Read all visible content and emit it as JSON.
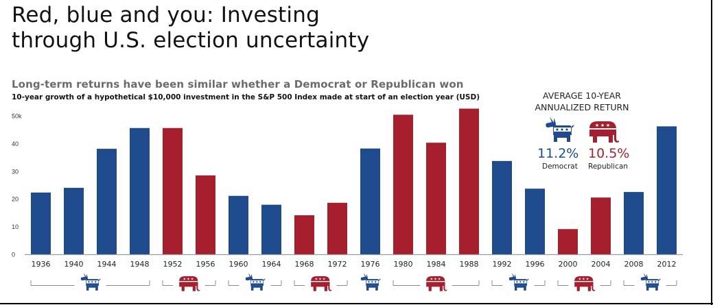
{
  "header": {
    "title_line1": "Red, blue and you: Investing",
    "title_line2": "through U.S. election uncertainty",
    "subtitle": "Long-term returns have been similar whether a Democrat or Republican won",
    "description": "10-year growth of a hypothetical $10,000 investment in the S&P 500 Index made at start of an election year (USD)"
  },
  "colors": {
    "democrat": "#1f4a8c",
    "republican": "#a61f2f",
    "axis": "#9a9a9a"
  },
  "average_returns": {
    "heading_line1": "AVERAGE 10-YEAR",
    "heading_line2": "ANNUALIZED RETURN",
    "democrat": {
      "value": "11.2%",
      "label": "Democrat",
      "icon": "donkey-icon"
    },
    "republican": {
      "value": "10.5%",
      "label": "Republican",
      "icon": "elephant-icon"
    }
  },
  "chart_data": {
    "type": "bar",
    "title": "10-year growth of a hypothetical $10,000 investment in the S&P 500 Index made at start of an election year (USD)",
    "xlabel": "",
    "ylabel": "",
    "ylim": [
      0,
      50
    ],
    "yticks": [
      0,
      10,
      20,
      30,
      40,
      50
    ],
    "ytick_labels": [
      "0",
      "10",
      "20",
      "30",
      "40",
      "50k"
    ],
    "grid": false,
    "categories": [
      "1936",
      "1940",
      "1944",
      "1948",
      "1952",
      "1956",
      "1960",
      "1964",
      "1968",
      "1972",
      "1976",
      "1980",
      "1984",
      "1988",
      "1992",
      "1996",
      "2000",
      "2004",
      "2008",
      "2012"
    ],
    "values": [
      22.3,
      24.0,
      38.1,
      45.6,
      45.6,
      28.5,
      21.1,
      17.9,
      14.1,
      18.6,
      38.2,
      50.4,
      40.3,
      52.6,
      33.7,
      23.7,
      9.1,
      20.5,
      22.5,
      46.2
    ],
    "parties": [
      "D",
      "D",
      "D",
      "D",
      "R",
      "R",
      "D",
      "D",
      "R",
      "R",
      "D",
      "R",
      "R",
      "R",
      "D",
      "D",
      "R",
      "R",
      "D",
      "D"
    ],
    "legend": [
      {
        "party": "D",
        "name": "Democrat"
      },
      {
        "party": "R",
        "name": "Republican"
      }
    ],
    "party_groups": [
      {
        "party": "D",
        "from": "1936",
        "to": "1948"
      },
      {
        "party": "R",
        "from": "1952",
        "to": "1956"
      },
      {
        "party": "D",
        "from": "1960",
        "to": "1964"
      },
      {
        "party": "R",
        "from": "1968",
        "to": "1972"
      },
      {
        "party": "D",
        "from": "1976",
        "to": "1976"
      },
      {
        "party": "R",
        "from": "1980",
        "to": "1988"
      },
      {
        "party": "D",
        "from": "1992",
        "to": "1996"
      },
      {
        "party": "R",
        "from": "2000",
        "to": "2004"
      },
      {
        "party": "D",
        "from": "2008",
        "to": "2012"
      }
    ]
  }
}
